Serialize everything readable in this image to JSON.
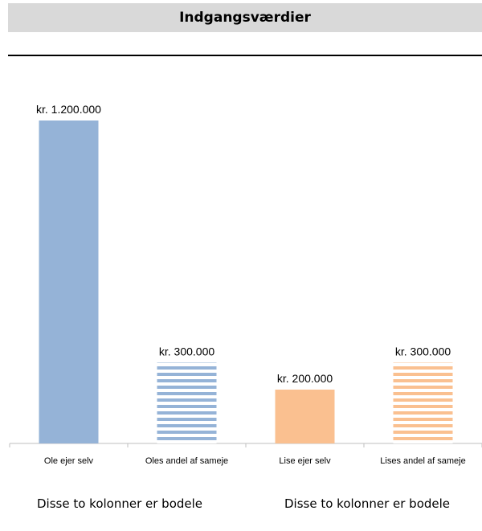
{
  "header": {
    "title": "Indgangsværdier"
  },
  "chart_data": {
    "type": "bar",
    "categories": [
      "Ole ejer selv",
      "Oles andel af sameje",
      "Lise ejer selv",
      "Lises andel af sameje"
    ],
    "values": [
      1200000,
      300000,
      200000,
      300000
    ],
    "data_labels": [
      "kr. 1.200.000",
      "kr. 300.000",
      "kr. 200.000",
      "kr. 300.000"
    ],
    "fills": [
      "solid",
      "striped",
      "solid",
      "striped"
    ],
    "colors": [
      "#95b3d7",
      "#95b3d7",
      "#fac090",
      "#fac090"
    ],
    "ylim": [
      0,
      1200000
    ],
    "grid": false,
    "legend": "none"
  },
  "notes": [
    "Disse to kolonner er bodele",
    "Disse to kolonner er bodele"
  ]
}
